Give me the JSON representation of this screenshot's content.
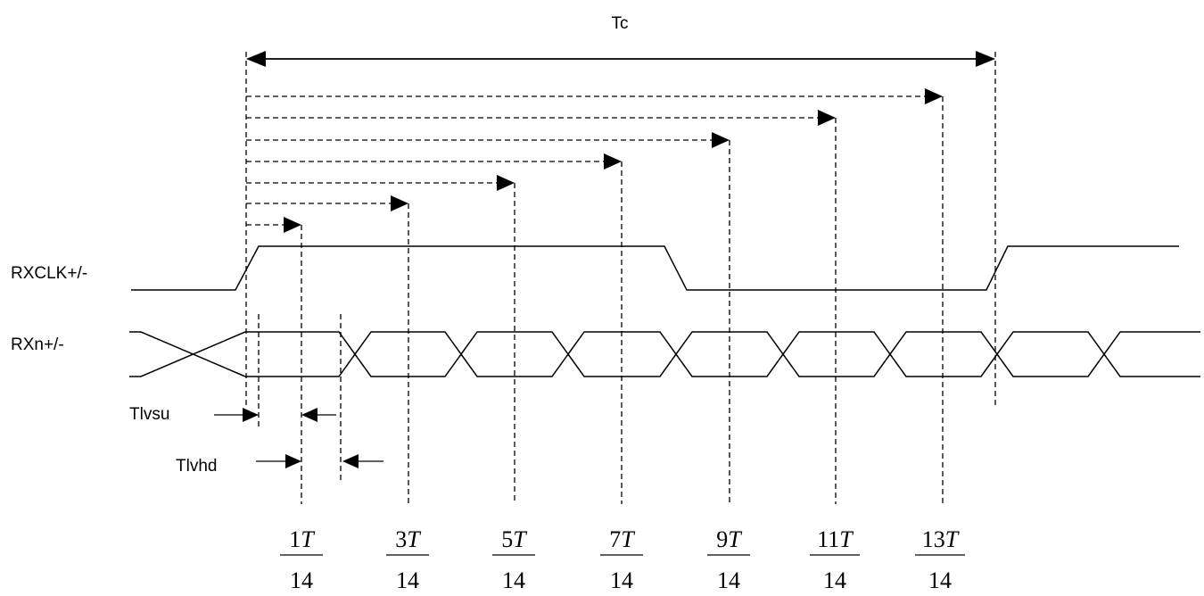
{
  "diagram": {
    "tc_label": "Tc",
    "clock_label": "RXCLK+/-",
    "data_label": "RXn+/-",
    "setup_label": "Tlvsu",
    "hold_label": "Tlvhd",
    "fractions": [
      {
        "num": "1",
        "var": "T",
        "den": "14"
      },
      {
        "num": "3",
        "var": "T",
        "den": "14"
      },
      {
        "num": "5",
        "var": "T",
        "den": "14"
      },
      {
        "num": "7",
        "var": "T",
        "den": "14"
      },
      {
        "num": "9",
        "var": "T",
        "den": "14"
      },
      {
        "num": "11",
        "var": "T",
        "den": "14"
      },
      {
        "num": "13",
        "var": "T",
        "den": "14"
      }
    ]
  }
}
